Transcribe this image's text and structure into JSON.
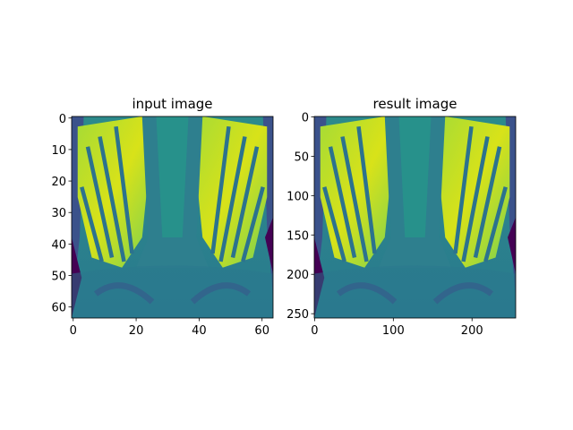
{
  "chart_data": [
    {
      "type": "image",
      "title": "input image",
      "xlim": [
        -0.5,
        63.5
      ],
      "ylim": [
        63.5,
        -0.5
      ],
      "xticks": [
        0,
        20,
        40,
        60
      ],
      "yticks": [
        0,
        10,
        20,
        30,
        40,
        50,
        60
      ]
    },
    {
      "type": "image",
      "title": "result image",
      "xlim": [
        -0.5,
        255.5
      ],
      "ylim": [
        255.5,
        -0.5
      ],
      "xticks": [
        0,
        100,
        200
      ],
      "yticks": [
        0,
        50,
        100,
        150,
        200,
        250
      ]
    }
  ]
}
